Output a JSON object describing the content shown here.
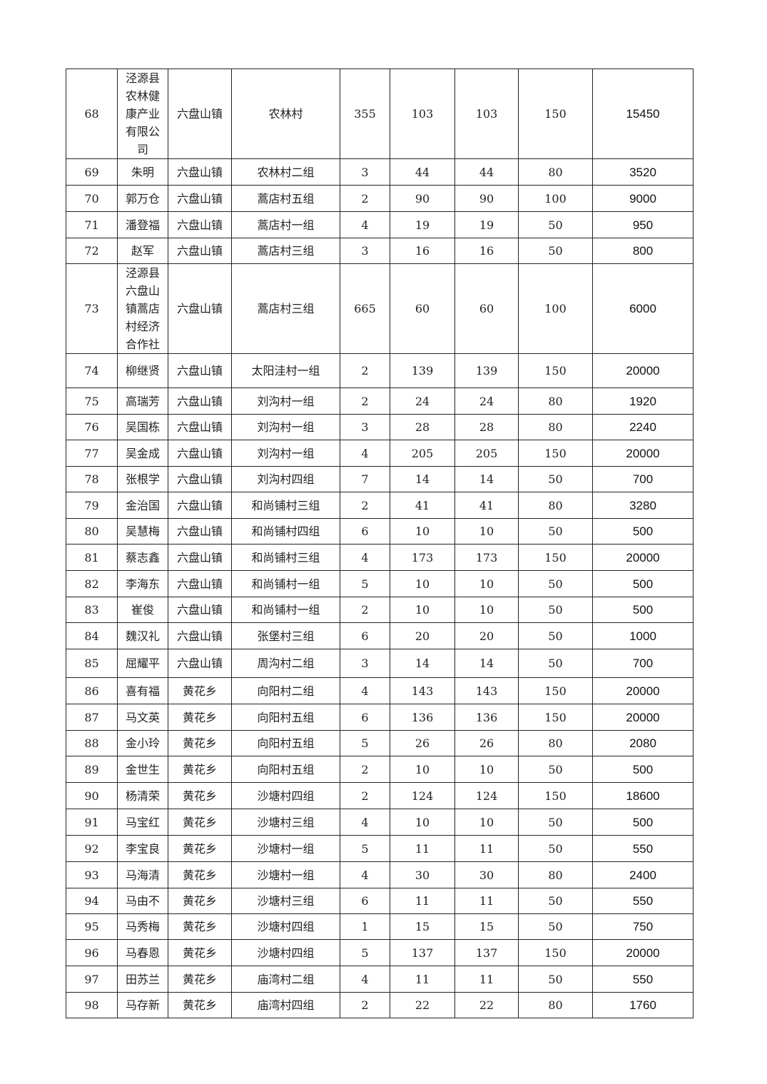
{
  "rows": [
    [
      "68",
      "泾源县农林健康产业有限公司",
      "六盘山镇",
      "农林村",
      "355",
      "103",
      "103",
      "150",
      "15450"
    ],
    [
      "69",
      "朱明",
      "六盘山镇",
      "农林村二组",
      "3",
      "44",
      "44",
      "80",
      "3520"
    ],
    [
      "70",
      "郭万仓",
      "六盘山镇",
      "蒿店村五组",
      "2",
      "90",
      "90",
      "100",
      "9000"
    ],
    [
      "71",
      "潘登福",
      "六盘山镇",
      "蒿店村一组",
      "4",
      "19",
      "19",
      "50",
      "950"
    ],
    [
      "72",
      "赵军",
      "六盘山镇",
      "蒿店村三组",
      "3",
      "16",
      "16",
      "50",
      "800"
    ],
    [
      "73",
      "泾源县六盘山镇蒿店村经济合作社",
      "六盘山镇",
      "蒿店村三组",
      "665",
      "60",
      "60",
      "100",
      "6000"
    ],
    [
      "74",
      "柳继贤",
      "六盘山镇",
      "太阳洼村一组",
      "2",
      "139",
      "139",
      "150",
      "20000"
    ],
    [
      "75",
      "高瑞芳",
      "六盘山镇",
      "刘沟村一组",
      "2",
      "24",
      "24",
      "80",
      "1920"
    ],
    [
      "76",
      "吴国栋",
      "六盘山镇",
      "刘沟村一组",
      "3",
      "28",
      "28",
      "80",
      "2240"
    ],
    [
      "77",
      "吴金成",
      "六盘山镇",
      "刘沟村一组",
      "4",
      "205",
      "205",
      "150",
      "20000"
    ],
    [
      "78",
      "张根学",
      "六盘山镇",
      "刘沟村四组",
      "7",
      "14",
      "14",
      "50",
      "700"
    ],
    [
      "79",
      "金治国",
      "六盘山镇",
      "和尚铺村三组",
      "2",
      "41",
      "41",
      "80",
      "3280"
    ],
    [
      "80",
      "吴慧梅",
      "六盘山镇",
      "和尚铺村四组",
      "6",
      "10",
      "10",
      "50",
      "500"
    ],
    [
      "81",
      "蔡志鑫",
      "六盘山镇",
      "和尚铺村三组",
      "4",
      "173",
      "173",
      "150",
      "20000"
    ],
    [
      "82",
      "李海东",
      "六盘山镇",
      "和尚铺村一组",
      "5",
      "10",
      "10",
      "50",
      "500"
    ],
    [
      "83",
      "崔俊",
      "六盘山镇",
      "和尚铺村一组",
      "2",
      "10",
      "10",
      "50",
      "500"
    ],
    [
      "84",
      "魏汉礼",
      "六盘山镇",
      "张堡村三组",
      "6",
      "20",
      "20",
      "50",
      "1000"
    ],
    [
      "85",
      "屈耀平",
      "六盘山镇",
      "周沟村二组",
      "3",
      "14",
      "14",
      "50",
      "700"
    ],
    [
      "86",
      "喜有福",
      "黄花乡",
      "向阳村二组",
      "4",
      "143",
      "143",
      "150",
      "20000"
    ],
    [
      "87",
      "马文英",
      "黄花乡",
      "向阳村五组",
      "6",
      "136",
      "136",
      "150",
      "20000"
    ],
    [
      "88",
      "金小玲",
      "黄花乡",
      "向阳村五组",
      "5",
      "26",
      "26",
      "80",
      "2080"
    ],
    [
      "89",
      "金世生",
      "黄花乡",
      "向阳村五组",
      "2",
      "10",
      "10",
      "50",
      "500"
    ],
    [
      "90",
      "杨清荣",
      "黄花乡",
      "沙塘村四组",
      "2",
      "124",
      "124",
      "150",
      "18600"
    ],
    [
      "91",
      "马宝红",
      "黄花乡",
      "沙塘村三组",
      "4",
      "10",
      "10",
      "50",
      "500"
    ],
    [
      "92",
      "李宝良",
      "黄花乡",
      "沙塘村一组",
      "5",
      "11",
      "11",
      "50",
      "550"
    ],
    [
      "93",
      "马海清",
      "黄花乡",
      "沙塘村一组",
      "4",
      "30",
      "30",
      "80",
      "2400"
    ],
    [
      "94",
      "马由不",
      "黄花乡",
      "沙塘村三组",
      "6",
      "11",
      "11",
      "50",
      "550"
    ],
    [
      "95",
      "马秀梅",
      "黄花乡",
      "沙塘村四组",
      "1",
      "15",
      "15",
      "50",
      "750"
    ],
    [
      "96",
      "马春恩",
      "黄花乡",
      "沙塘村四组",
      "5",
      "137",
      "137",
      "150",
      "20000"
    ],
    [
      "97",
      "田苏兰",
      "黄花乡",
      "庙湾村二组",
      "4",
      "11",
      "11",
      "50",
      "550"
    ],
    [
      "98",
      "马存新",
      "黄花乡",
      "庙湾村四组",
      "2",
      "22",
      "22",
      "80",
      "1760"
    ]
  ]
}
